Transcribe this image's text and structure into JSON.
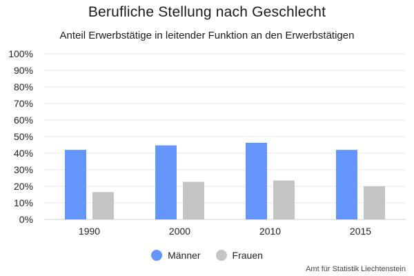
{
  "chart_data": {
    "type": "bar",
    "title": "Berufliche Stellung nach Geschlecht",
    "subtitle": "Anteil Erwerbstätige in leitender Funktion an den Erwerbstätigen",
    "categories": [
      "1990",
      "2000",
      "2010",
      "2015"
    ],
    "series": [
      {
        "name": "Männer",
        "color": "#6495fa",
        "values": [
          42.0,
          44.7,
          46.3,
          42.0
        ]
      },
      {
        "name": "Frauen",
        "color": "#c4c4c4",
        "values": [
          16.5,
          22.7,
          23.5,
          20.0
        ]
      }
    ],
    "ylim": [
      0,
      100
    ],
    "yticks": [
      "0%",
      "10%",
      "20%",
      "30%",
      "40%",
      "50%",
      "60%",
      "70%",
      "80%",
      "90%",
      "100%"
    ],
    "grid": true,
    "legend_position": "bottom",
    "source": "Amt für Statistik Liechtenstein"
  }
}
